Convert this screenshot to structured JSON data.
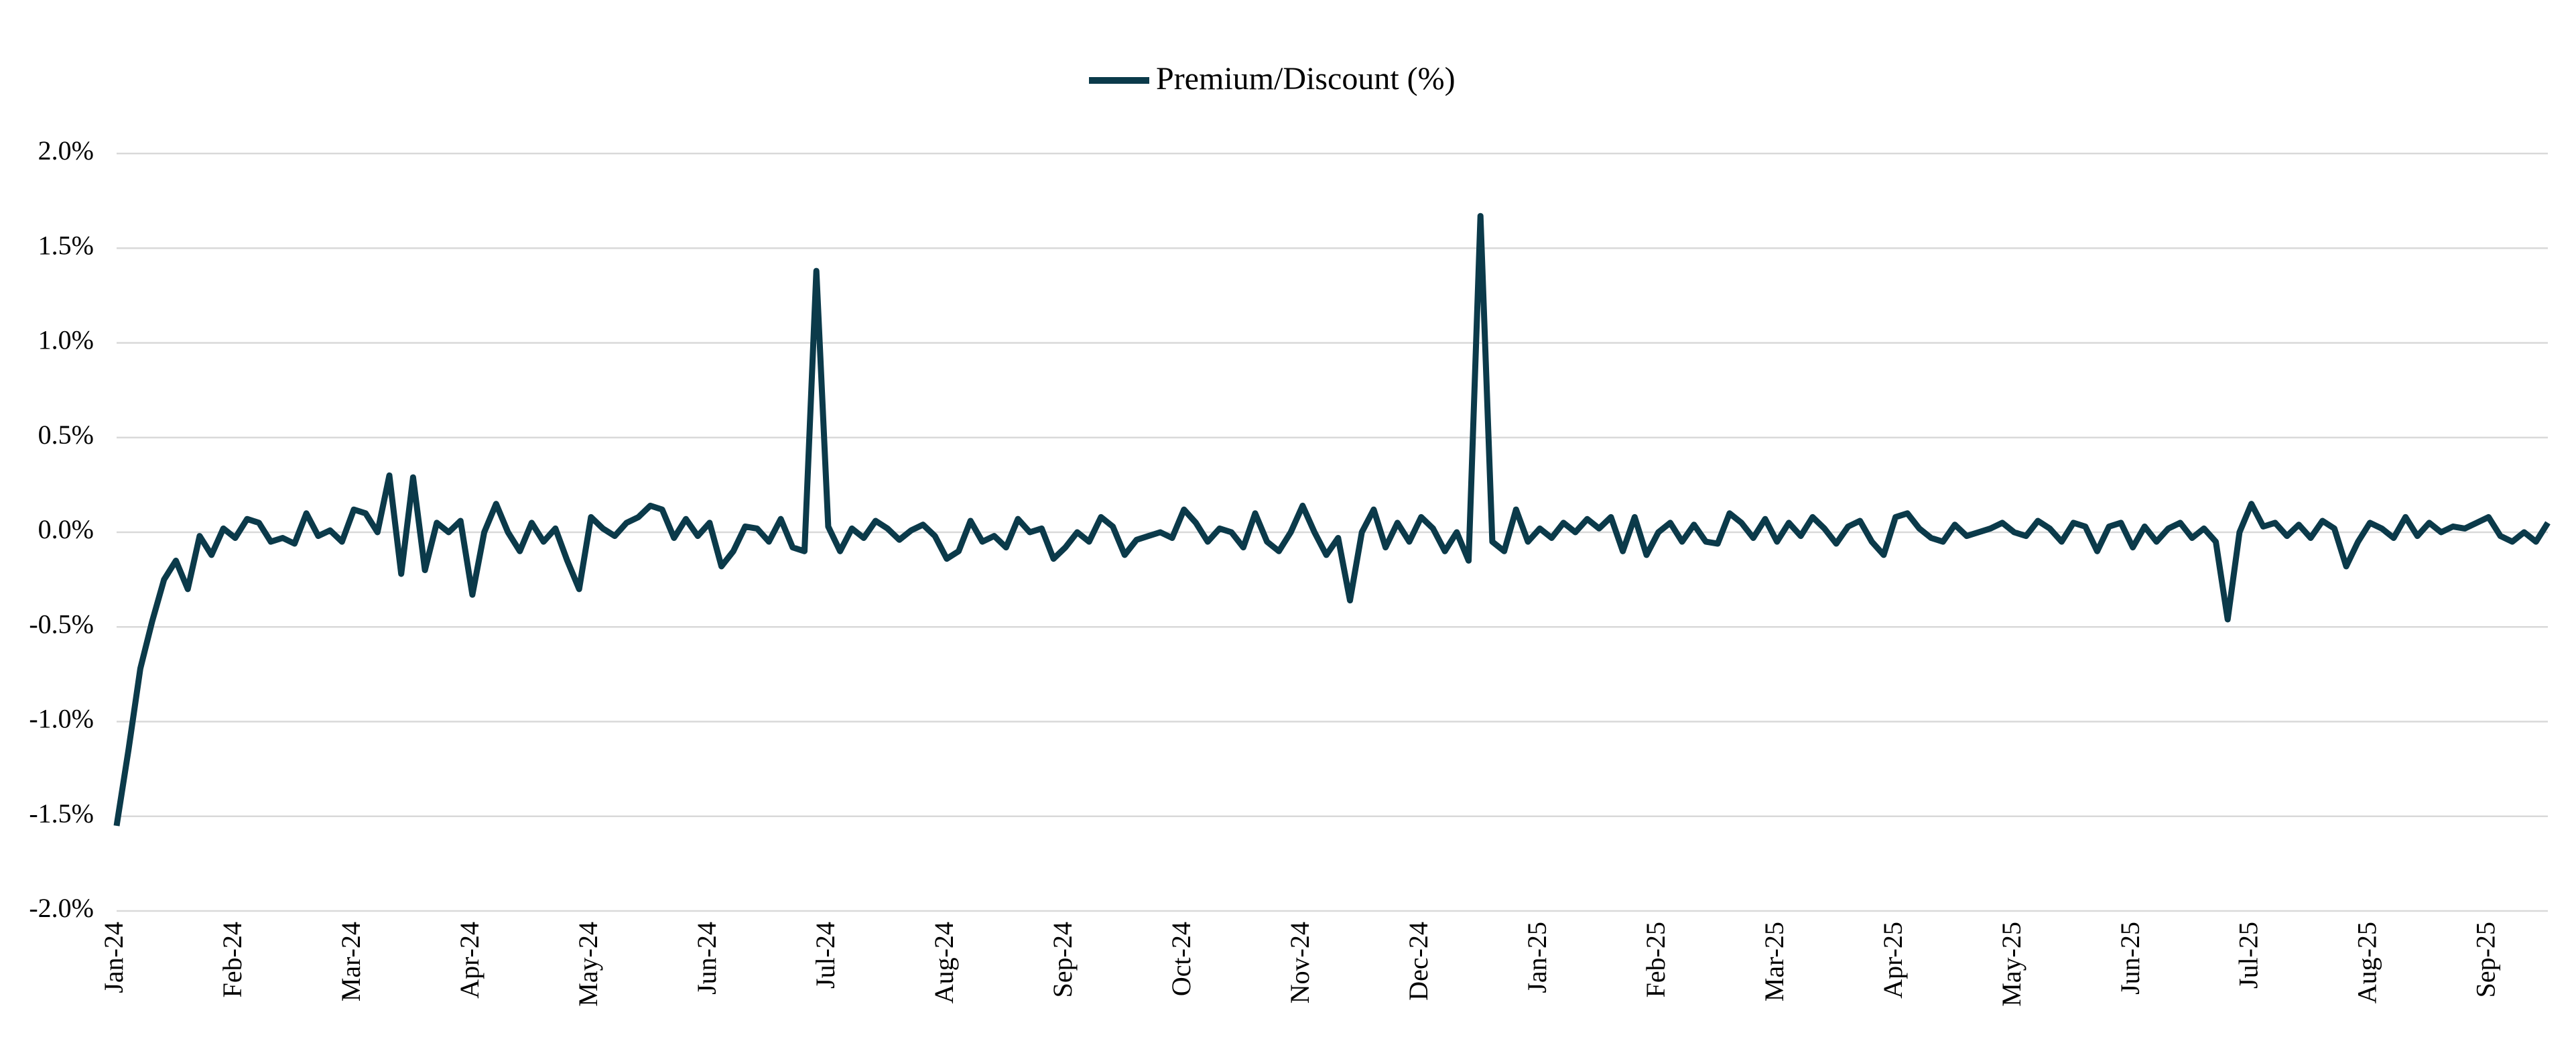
{
  "chart_data": {
    "type": "line",
    "categories": [
      "Jan-24",
      null,
      null,
      null,
      null,
      null,
      null,
      null,
      null,
      null,
      "Feb-24",
      null,
      null,
      null,
      null,
      null,
      null,
      null,
      null,
      null,
      "Mar-24",
      null,
      null,
      null,
      null,
      null,
      null,
      null,
      null,
      null,
      "Apr-24",
      null,
      null,
      null,
      null,
      null,
      null,
      null,
      null,
      null,
      "May-24",
      null,
      null,
      null,
      null,
      null,
      null,
      null,
      null,
      null,
      "Jun-24",
      null,
      null,
      null,
      null,
      null,
      null,
      null,
      null,
      null,
      "Jul-24",
      null,
      null,
      null,
      null,
      null,
      null,
      null,
      null,
      null,
      "Aug-24",
      null,
      null,
      null,
      null,
      null,
      null,
      null,
      null,
      null,
      "Sep-24",
      null,
      null,
      null,
      null,
      null,
      null,
      null,
      null,
      null,
      "Oct-24",
      null,
      null,
      null,
      null,
      null,
      null,
      null,
      null,
      null,
      "Nov-24",
      null,
      null,
      null,
      null,
      null,
      null,
      null,
      null,
      null,
      "Dec-24",
      null,
      null,
      null,
      null,
      null,
      null,
      null,
      null,
      null,
      "Jan-25",
      null,
      null,
      null,
      null,
      null,
      null,
      null,
      null,
      null,
      "Feb-25",
      null,
      null,
      null,
      null,
      null,
      null,
      null,
      null,
      null,
      "Mar-25",
      null,
      null,
      null,
      null,
      null,
      null,
      null,
      null,
      null,
      "Apr-25",
      null,
      null,
      null,
      null,
      null,
      null,
      null,
      null,
      null,
      "May-25",
      null,
      null,
      null,
      null,
      null,
      null,
      null,
      null,
      null,
      "Jun-25",
      null,
      null,
      null,
      null,
      null,
      null,
      null,
      null,
      null,
      "Jul-25",
      null,
      null,
      null,
      null,
      null,
      null,
      null,
      null,
      null,
      "Aug-25",
      null,
      null,
      null,
      null,
      null,
      null,
      null,
      null,
      null,
      "Sep-25",
      null,
      null,
      null,
      null,
      null
    ],
    "series": [
      {
        "name": "Premium/Discount (%)",
        "color": "#0b3a4a",
        "values": [
          -1.55,
          -1.15,
          -0.72,
          -0.47,
          -0.25,
          -0.15,
          -0.3,
          -0.02,
          -0.12,
          0.02,
          -0.03,
          0.07,
          0.05,
          -0.05,
          -0.03,
          -0.06,
          0.1,
          -0.02,
          0.01,
          -0.05,
          0.12,
          0.1,
          0.0,
          0.3,
          -0.22,
          0.29,
          -0.2,
          0.05,
          0.0,
          0.06,
          -0.33,
          0.0,
          0.15,
          0.0,
          -0.1,
          0.05,
          -0.05,
          0.02,
          -0.15,
          -0.3,
          0.08,
          0.02,
          -0.02,
          0.05,
          0.08,
          0.14,
          0.12,
          -0.03,
          0.07,
          -0.02,
          0.05,
          -0.18,
          -0.1,
          0.03,
          0.02,
          -0.05,
          0.07,
          -0.08,
          -0.1,
          1.38,
          0.03,
          -0.1,
          0.02,
          -0.03,
          0.06,
          0.02,
          -0.04,
          0.01,
          0.04,
          -0.02,
          -0.14,
          -0.1,
          0.06,
          -0.05,
          -0.02,
          -0.08,
          0.07,
          0.0,
          0.02,
          -0.14,
          -0.08,
          0.0,
          -0.05,
          0.08,
          0.03,
          -0.12,
          -0.04,
          -0.02,
          0.0,
          -0.03,
          0.12,
          0.05,
          -0.05,
          0.02,
          0.0,
          -0.08,
          0.1,
          -0.05,
          -0.1,
          0.0,
          0.14,
          0.0,
          -0.12,
          -0.03,
          -0.36,
          0.0,
          0.12,
          -0.08,
          0.05,
          -0.05,
          0.08,
          0.02,
          -0.1,
          0.0,
          -0.15,
          1.67,
          -0.05,
          -0.1,
          0.12,
          -0.05,
          0.02,
          -0.03,
          0.05,
          0.0,
          0.07,
          0.02,
          0.08,
          -0.1,
          0.08,
          -0.12,
          0.0,
          0.05,
          -0.05,
          0.04,
          -0.05,
          -0.06,
          0.1,
          0.05,
          -0.03,
          0.07,
          -0.05,
          0.05,
          -0.02,
          0.08,
          0.02,
          -0.06,
          0.03,
          0.06,
          -0.05,
          -0.12,
          0.08,
          0.1,
          0.02,
          -0.03,
          -0.05,
          0.04,
          -0.02,
          0.0,
          0.02,
          0.05,
          0.0,
          -0.02,
          0.06,
          0.02,
          -0.05,
          0.05,
          0.03,
          -0.1,
          0.03,
          0.05,
          -0.08,
          0.03,
          -0.05,
          0.02,
          0.05,
          -0.03,
          0.02,
          -0.05,
          -0.46,
          0.0,
          0.15,
          0.03,
          0.05,
          -0.02,
          0.04,
          -0.03,
          0.06,
          0.02,
          -0.18,
          -0.05,
          0.05,
          0.02,
          -0.03,
          0.08,
          -0.02,
          0.05,
          0.0,
          0.03,
          0.02,
          0.05,
          0.08,
          -0.02,
          -0.05,
          0.0,
          -0.05,
          0.05
        ]
      }
    ],
    "ylim": [
      -2,
      2
    ],
    "yticks": [
      {
        "value": -2,
        "label": "-2.0%"
      },
      {
        "value": -1.5,
        "label": "-1.5%"
      },
      {
        "value": -1,
        "label": "-1.0%"
      },
      {
        "value": -0.5,
        "label": "-0.5%"
      },
      {
        "value": 0,
        "label": "0.0%"
      },
      {
        "value": 0.5,
        "label": "0.5%"
      },
      {
        "value": 1,
        "label": "1.0%"
      },
      {
        "value": 1.5,
        "label": "1.5%"
      },
      {
        "value": 2,
        "label": "2.0%"
      }
    ],
    "grid": true,
    "legend": "top"
  }
}
